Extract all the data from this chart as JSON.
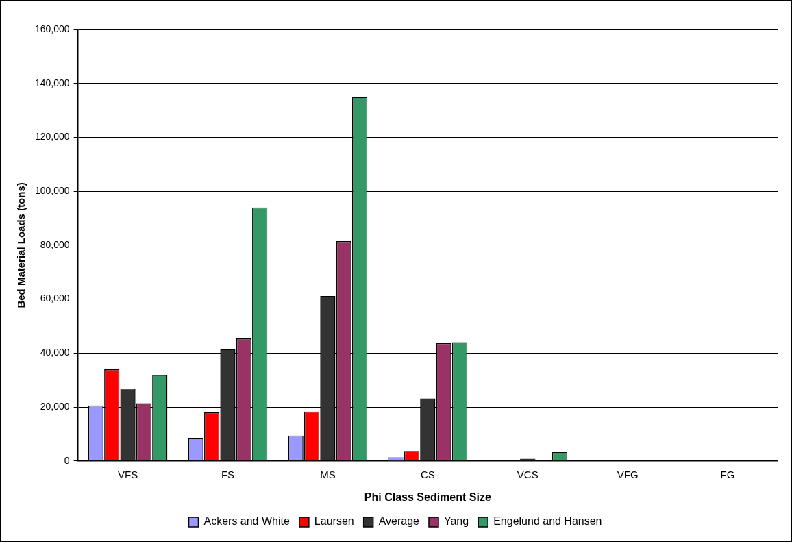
{
  "chart_data": {
    "type": "bar",
    "xlabel": "Phi Class Sediment Size",
    "ylabel": "Bed Material Loads (tons)",
    "categories": [
      "VFS",
      "FS",
      "MS",
      "CS",
      "VCS",
      "VFG",
      "FG"
    ],
    "series": [
      {
        "name": "Ackers and White",
        "color": "#9999ff",
        "values": [
          20600,
          8600,
          9400,
          1400,
          0,
          0,
          0
        ]
      },
      {
        "name": "Laursen",
        "color": "#ff0000",
        "values": [
          34000,
          18000,
          18300,
          3700,
          0,
          0,
          0
        ]
      },
      {
        "name": "Average",
        "color": "#333333",
        "values": [
          26900,
          41500,
          61200,
          23200,
          800,
          0,
          0
        ]
      },
      {
        "name": "Yang",
        "color": "#993366",
        "values": [
          21400,
          45400,
          81500,
          43700,
          0,
          0,
          0
        ]
      },
      {
        "name": "Engelund and Hansen",
        "color": "#339966",
        "values": [
          31900,
          94000,
          135000,
          44000,
          3400,
          0,
          0
        ]
      }
    ],
    "ylim": [
      0,
      160000
    ],
    "yticks": [
      {
        "value": 0,
        "label": "0"
      },
      {
        "value": 20000,
        "label": "20,000"
      },
      {
        "value": 40000,
        "label": "40,000"
      },
      {
        "value": 60000,
        "label": "60,000"
      },
      {
        "value": 80000,
        "label": "80,000"
      },
      {
        "value": 100000,
        "label": "100,000"
      },
      {
        "value": 120000,
        "label": "120,000"
      },
      {
        "value": 140000,
        "label": "140,000"
      },
      {
        "value": 160000,
        "label": "160,000"
      }
    ],
    "grid": "y",
    "legend": "bottom"
  }
}
